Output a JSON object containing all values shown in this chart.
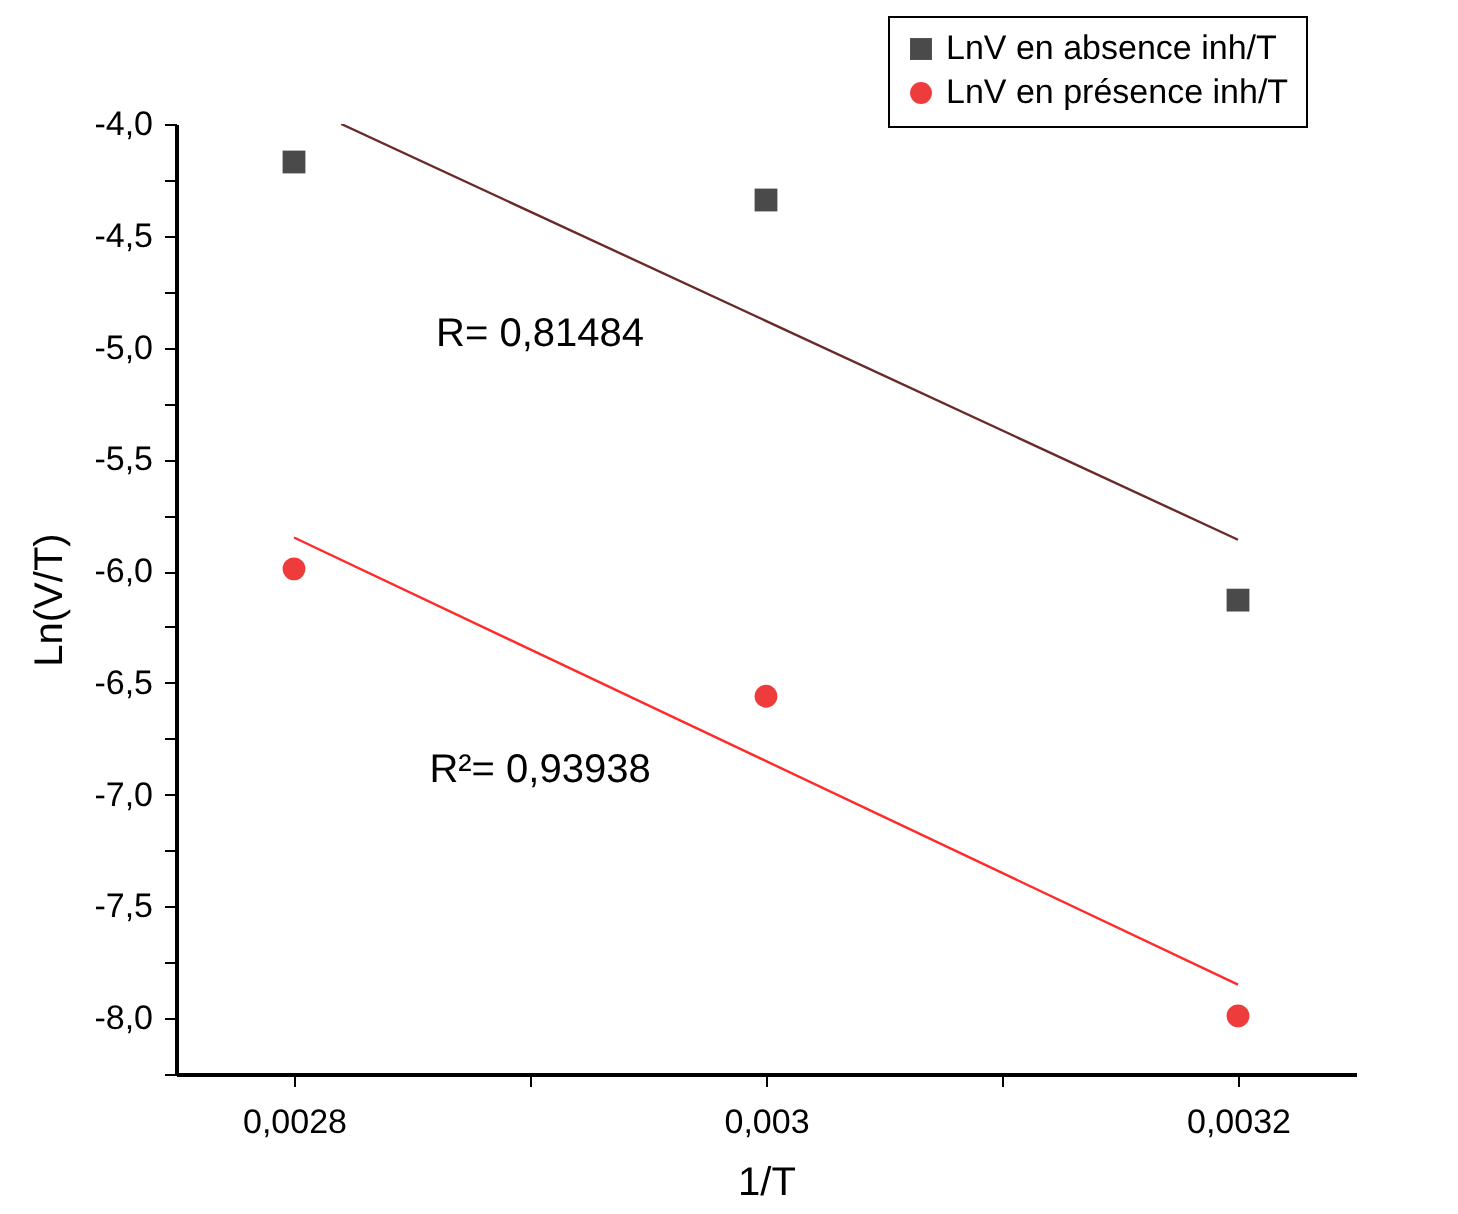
{
  "chart_data": {
    "type": "scatter",
    "xlabel": "1/T",
    "ylabel": "Ln(V/T)",
    "xlim": [
      0.00275,
      0.00325
    ],
    "xticks": [
      {
        "value": 0.0028,
        "label": "0,0028"
      },
      {
        "value": 0.0029,
        "label": null
      },
      {
        "value": 0.003,
        "label": "0,003"
      },
      {
        "value": 0.0031,
        "label": null
      },
      {
        "value": 0.0032,
        "label": "0,0032"
      }
    ],
    "ylim": [
      -8.25,
      -4.0
    ],
    "yticks": [
      {
        "value": -4.0,
        "label": "-4,0"
      },
      {
        "value": -4.25,
        "label": null
      },
      {
        "value": -4.5,
        "label": "-4,5"
      },
      {
        "value": -4.75,
        "label": null
      },
      {
        "value": -5.0,
        "label": "-5,0"
      },
      {
        "value": -5.25,
        "label": null
      },
      {
        "value": -5.5,
        "label": "-5,5"
      },
      {
        "value": -5.75,
        "label": null
      },
      {
        "value": -6.0,
        "label": "-6,0"
      },
      {
        "value": -6.25,
        "label": null
      },
      {
        "value": -6.5,
        "label": "-6,5"
      },
      {
        "value": -6.75,
        "label": null
      },
      {
        "value": -7.0,
        "label": "-7,0"
      },
      {
        "value": -7.25,
        "label": null
      },
      {
        "value": -7.5,
        "label": "-7,5"
      },
      {
        "value": -7.75,
        "label": null
      },
      {
        "value": -8.0,
        "label": "-8,0"
      },
      {
        "value": -8.25,
        "label": null
      }
    ],
    "x": [
      0.0028,
      0.003,
      0.0032
    ],
    "series": [
      {
        "name": "LnV en absence inh/T",
        "color": "#4a4a4a",
        "marker": "square",
        "values": [
          -4.17,
          -4.34,
          -6.13
        ]
      },
      {
        "name": "LnV en présence inh/T",
        "color": "#ee3b3b",
        "marker": "circle",
        "values": [
          -5.99,
          -6.56,
          -7.99
        ]
      },
      {
        "type": "line",
        "color": "#6b2a2a",
        "x": [
          0.00282,
          0.0032
        ],
        "values": [
          -4.0,
          -5.86
        ]
      },
      {
        "type": "line",
        "color": "#ff2a2a",
        "x": [
          0.0028,
          0.0032
        ],
        "values": [
          -5.85,
          -7.85
        ]
      }
    ],
    "annotations": [
      "R= 0,81484",
      "R²= 0,93938"
    ],
    "grid": false,
    "legend": "top right"
  }
}
